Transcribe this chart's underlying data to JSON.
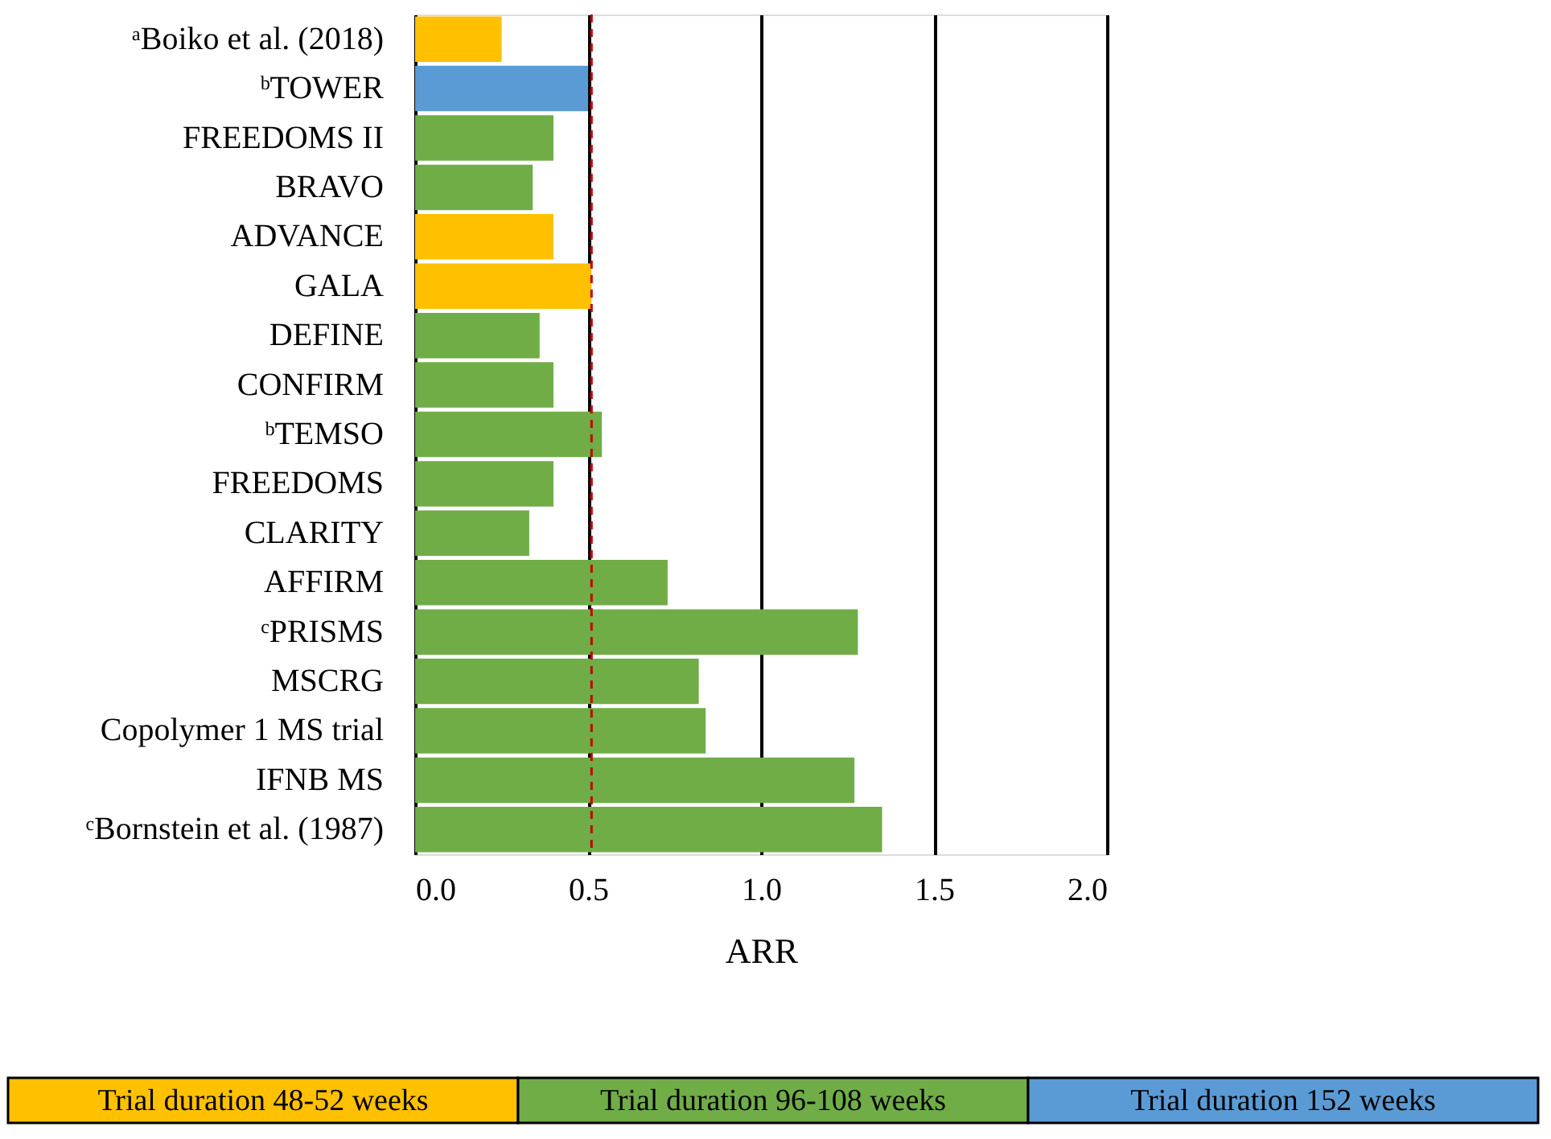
{
  "chart_data": {
    "type": "bar",
    "orientation": "horizontal",
    "categories": [
      "ᵃBoiko et al. (2018)",
      "ᵇTOWER",
      "FREEDOMS II",
      "BRAVO",
      "ADVANCE",
      "GALA",
      "DEFINE",
      "CONFIRM",
      "ᵇTEMSO",
      "FREEDOMS",
      "CLARITY",
      "AFFIRM",
      "ᶜPRISMS",
      "MSCRG",
      "Copolymer 1 MS trial",
      "IFNB MS",
      "ᶜBornstein et al. (1987)"
    ],
    "series": [
      {
        "name": "Trial duration 48-52 weeks",
        "color": "#ffc000",
        "values": [
          0.25,
          null,
          null,
          null,
          0.4,
          0.51,
          null,
          null,
          null,
          null,
          null,
          null,
          null,
          null,
          null,
          null,
          null
        ]
      },
      {
        "name": "Trial duration 96-108 weeks",
        "color": "#70ad47",
        "values": [
          null,
          null,
          0.4,
          0.34,
          null,
          null,
          0.36,
          0.4,
          0.54,
          0.4,
          0.33,
          0.73,
          1.28,
          0.82,
          0.84,
          1.27,
          1.35
        ]
      },
      {
        "name": "Trial duration 152 weeks",
        "color": "#5b9bd5",
        "values": [
          null,
          0.5,
          null,
          null,
          null,
          null,
          null,
          null,
          null,
          null,
          null,
          null,
          null,
          null,
          null,
          null,
          null
        ]
      }
    ],
    "xlabel": "ARR",
    "xlim": [
      0,
      2.0
    ],
    "xticks": [
      {
        "value": 0,
        "label": "0.0"
      },
      {
        "value": 0.5,
        "label": "0.5"
      },
      {
        "value": 1.0,
        "label": "1.0"
      },
      {
        "value": 1.5,
        "label": "1.5"
      },
      {
        "value": 2.0,
        "label": "2.0"
      }
    ],
    "ref_lines": [
      {
        "axis": "x",
        "value": 0.51,
        "label": null,
        "color": "#c00000",
        "line_style": "dashed"
      }
    ],
    "grid": "x",
    "legend": "bottom"
  }
}
